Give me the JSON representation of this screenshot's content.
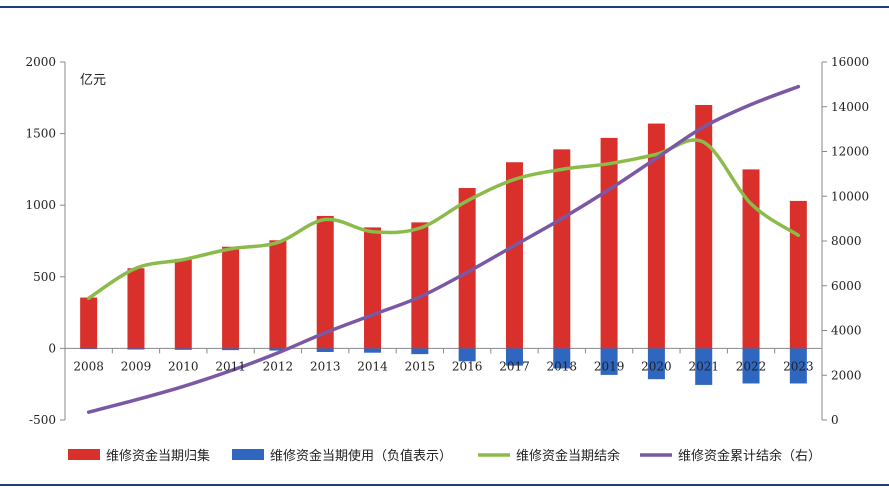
{
  "chart_data": {
    "type": "bar",
    "categories": [
      "2008",
      "2009",
      "2010",
      "2011",
      "2012",
      "2013",
      "2014",
      "2015",
      "2016",
      "2017",
      "2018",
      "2019",
      "2020",
      "2021",
      "2022",
      "2023"
    ],
    "unit_label": "亿元",
    "y_left": {
      "min": -500,
      "max": 2000,
      "ticks": [
        "-500",
        "0",
        "500",
        "1000",
        "1500",
        "2000"
      ],
      "tick_values": [
        -500,
        0,
        500,
        1000,
        1500,
        2000
      ]
    },
    "y_right": {
      "min": 0,
      "max": 16000,
      "ticks": [
        "0",
        "2000",
        "4000",
        "6000",
        "8000",
        "10000",
        "12000",
        "14000",
        "16000"
      ],
      "tick_values": [
        0,
        2000,
        4000,
        6000,
        8000,
        10000,
        12000,
        14000,
        16000
      ]
    },
    "series": [
      {
        "name": "维修资金当期归集",
        "type": "bar",
        "axis": "left",
        "color": "#d9302c",
        "values": [
          355,
          560,
          625,
          710,
          755,
          925,
          845,
          880,
          1120,
          1300,
          1390,
          1470,
          1570,
          1700,
          1250,
          1030
        ]
      },
      {
        "name": "维修资金当期使用（负值表示）",
        "type": "bar",
        "axis": "left",
        "color": "#2f66c0",
        "values": [
          -5,
          -8,
          -10,
          -12,
          -15,
          -25,
          -30,
          -40,
          -90,
          -120,
          -140,
          -185,
          -215,
          -255,
          -245,
          -245
        ]
      },
      {
        "name": "维修资金当期结余",
        "type": "line",
        "axis": "left",
        "color": "#8bbb4a",
        "values": [
          350,
          560,
          620,
          695,
          740,
          900,
          815,
          840,
          1030,
          1180,
          1250,
          1290,
          1355,
          1440,
          1010,
          790
        ]
      },
      {
        "name": "维修资金累计结余（右）",
        "type": "line",
        "axis": "right",
        "color": "#7b58a4",
        "values": [
          350,
          900,
          1500,
          2200,
          3000,
          3900,
          4700,
          5500,
          6600,
          7800,
          9000,
          10300,
          11700,
          13100,
          14100,
          14900
        ]
      }
    ]
  }
}
